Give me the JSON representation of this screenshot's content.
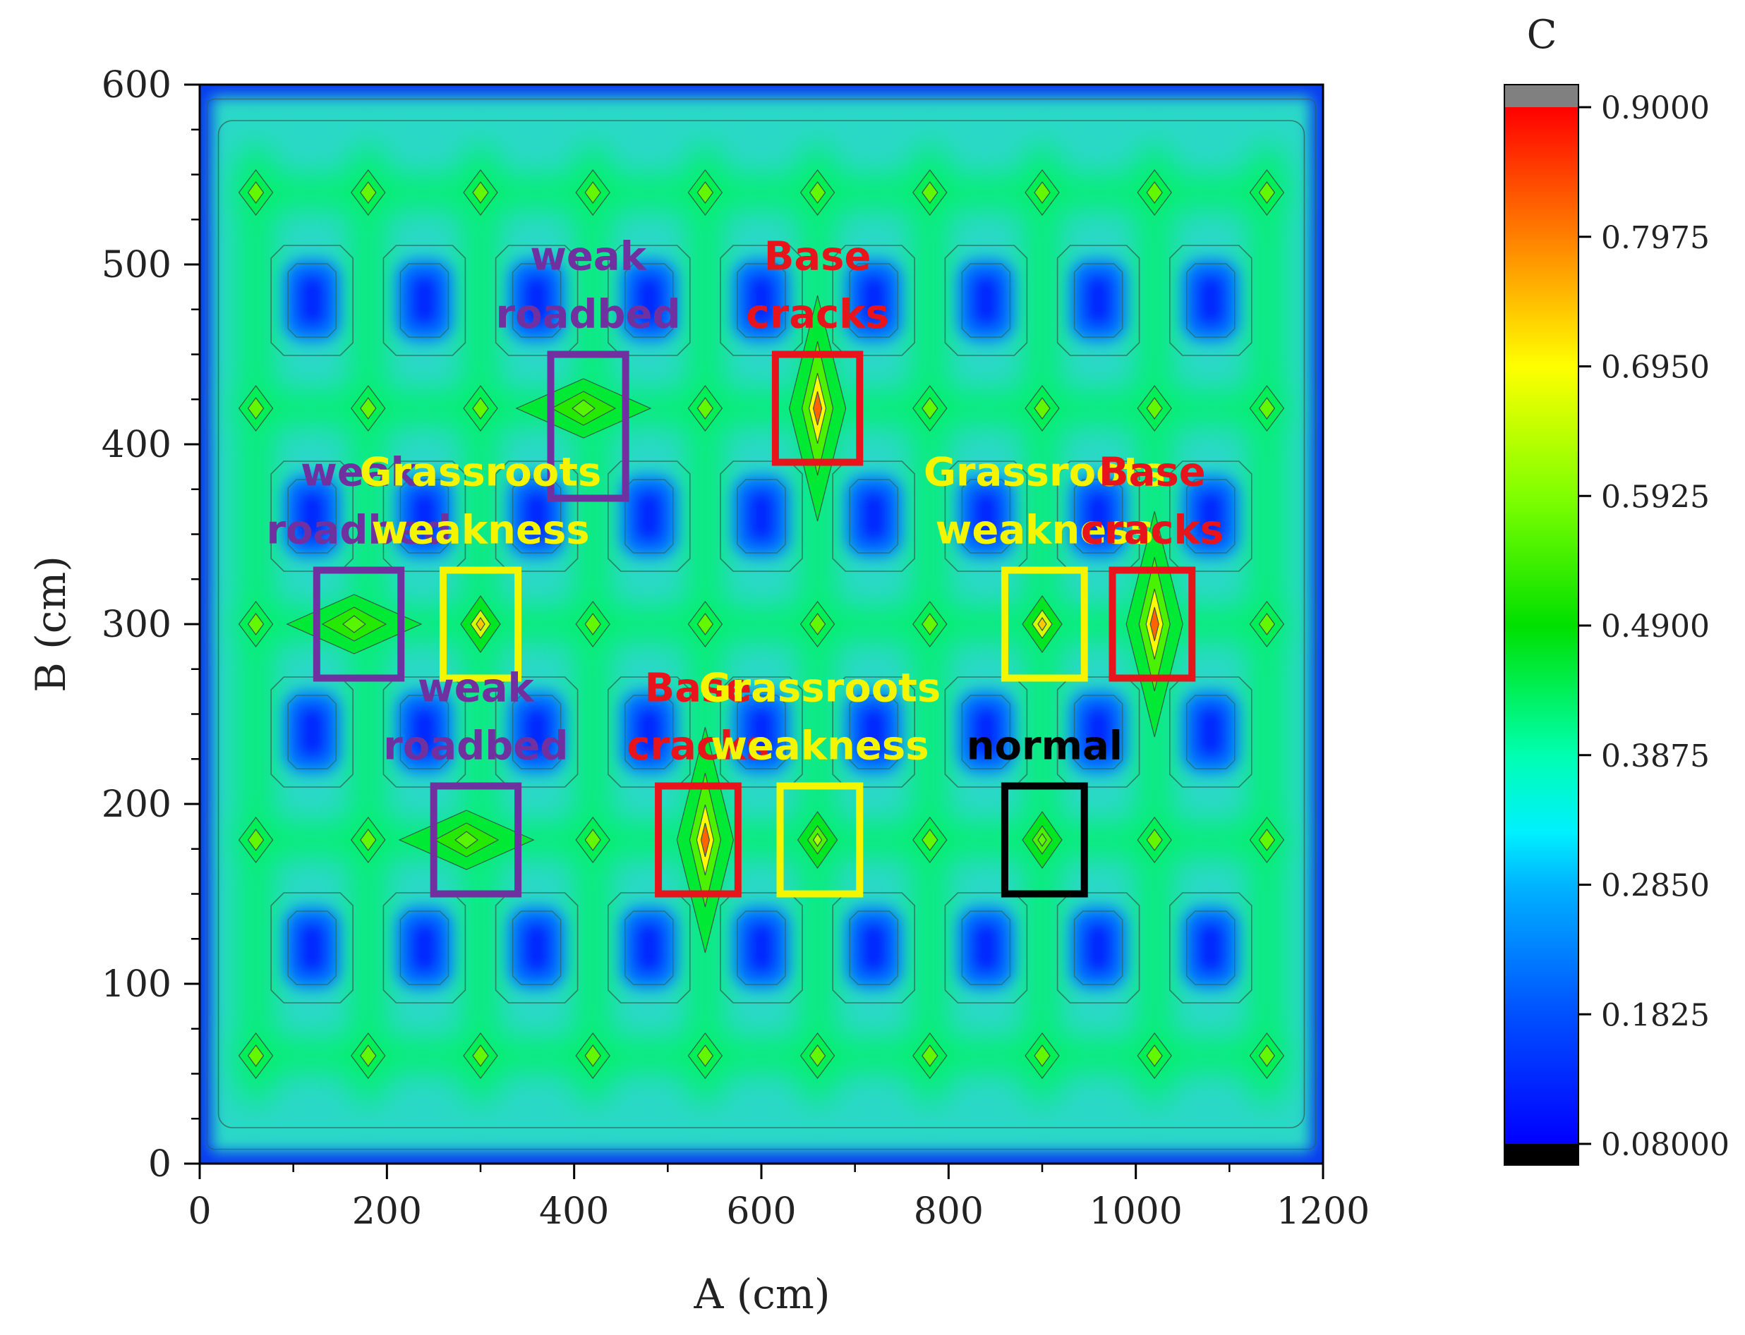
{
  "chart_data": {
    "type": "heatmap",
    "xlabel": "A (cm)",
    "ylabel": "B (cm)",
    "xlim": [
      0,
      1200
    ],
    "ylim": [
      0,
      600
    ],
    "xticks": [
      0,
      200,
      400,
      600,
      800,
      1000,
      1200
    ],
    "yticks": [
      0,
      100,
      200,
      300,
      400,
      500,
      600
    ],
    "colorbar": {
      "title": "C",
      "range": [
        0.08,
        0.9
      ],
      "ticks": [
        "0.08000",
        "0.1825",
        "0.2850",
        "0.3875",
        "0.4900",
        "0.5925",
        "0.6950",
        "0.7975",
        "0.9000"
      ],
      "tick_values": [
        0.08,
        0.1825,
        0.285,
        0.3875,
        0.49,
        0.5925,
        0.695,
        0.7975,
        0.9
      ],
      "over_color": "#808080",
      "under_color": "#000000"
    },
    "grid_points": {
      "x": [
        60,
        180,
        300,
        420,
        540,
        660,
        780,
        900,
        1020,
        1140
      ],
      "y": [
        60,
        180,
        300,
        420,
        540
      ],
      "base_value": 0.49
    },
    "low_points": {
      "x": [
        120,
        240,
        360,
        480,
        600,
        720,
        840,
        960,
        1080
      ],
      "y": [
        120,
        240,
        360,
        480
      ],
      "value": 0.13
    },
    "anomalies": [
      {
        "label": "weak roadbed",
        "lines": [
          "weak",
          "roadbed"
        ],
        "color": "#7030A0",
        "x": [
          375,
          455
        ],
        "y": [
          370,
          450
        ],
        "peak": [
          410,
          420
        ],
        "value": 0.56,
        "shape": "horizontal"
      },
      {
        "label": "Base cracks",
        "lines": [
          "Base",
          "cracks"
        ],
        "color": "#E8141C",
        "x": [
          615,
          705
        ],
        "y": [
          390,
          450
        ],
        "peak": [
          660,
          420
        ],
        "value": 0.82,
        "shape": "vertical"
      },
      {
        "label": "weak roadbed",
        "lines": [
          "weak",
          "roadbed"
        ],
        "color": "#7030A0",
        "x": [
          125,
          215
        ],
        "y": [
          270,
          330
        ],
        "peak": [
          165,
          300
        ],
        "value": 0.56,
        "shape": "horizontal"
      },
      {
        "label": "Grassroots weakness",
        "lines": [
          "Grassroots",
          "weakness"
        ],
        "color": "#F5F500",
        "x": [
          260,
          340
        ],
        "y": [
          270,
          330
        ],
        "peak": [
          300,
          300
        ],
        "value": 0.66,
        "shape": "point"
      },
      {
        "label": "Grassroots weakness",
        "lines": [
          "Grassroots",
          "weakness"
        ],
        "color": "#F5F500",
        "x": [
          860,
          945
        ],
        "y": [
          270,
          330
        ],
        "peak": [
          900,
          300
        ],
        "value": 0.66,
        "shape": "point"
      },
      {
        "label": "Base cracks",
        "lines": [
          "Base",
          "cracks"
        ],
        "color": "#E8141C",
        "x": [
          975,
          1060
        ],
        "y": [
          270,
          330
        ],
        "peak": [
          1020,
          300
        ],
        "value": 0.82,
        "shape": "vertical"
      },
      {
        "label": "weak roadbed",
        "lines": [
          "weak",
          "roadbed"
        ],
        "color": "#7030A0",
        "x": [
          250,
          340
        ],
        "y": [
          150,
          210
        ],
        "peak": [
          285,
          180
        ],
        "value": 0.56,
        "shape": "horizontal"
      },
      {
        "label": "Base cracks",
        "lines": [
          "Base",
          "cracks"
        ],
        "color": "#E8141C",
        "x": [
          490,
          575
        ],
        "y": [
          150,
          210
        ],
        "peak": [
          540,
          180
        ],
        "value": 0.82,
        "shape": "vertical"
      },
      {
        "label": "Grassroots weakness",
        "lines": [
          "Grassroots",
          "weakness"
        ],
        "color": "#F5F500",
        "x": [
          620,
          705
        ],
        "y": [
          150,
          210
        ],
        "peak": [
          660,
          180
        ],
        "value": 0.55,
        "shape": "point"
      },
      {
        "label": "normal",
        "lines": [
          "normal"
        ],
        "color": "#000000",
        "x": [
          860,
          945
        ],
        "y": [
          150,
          210
        ],
        "peak": [
          900,
          180
        ],
        "value": 0.49,
        "shape": "point"
      }
    ]
  }
}
